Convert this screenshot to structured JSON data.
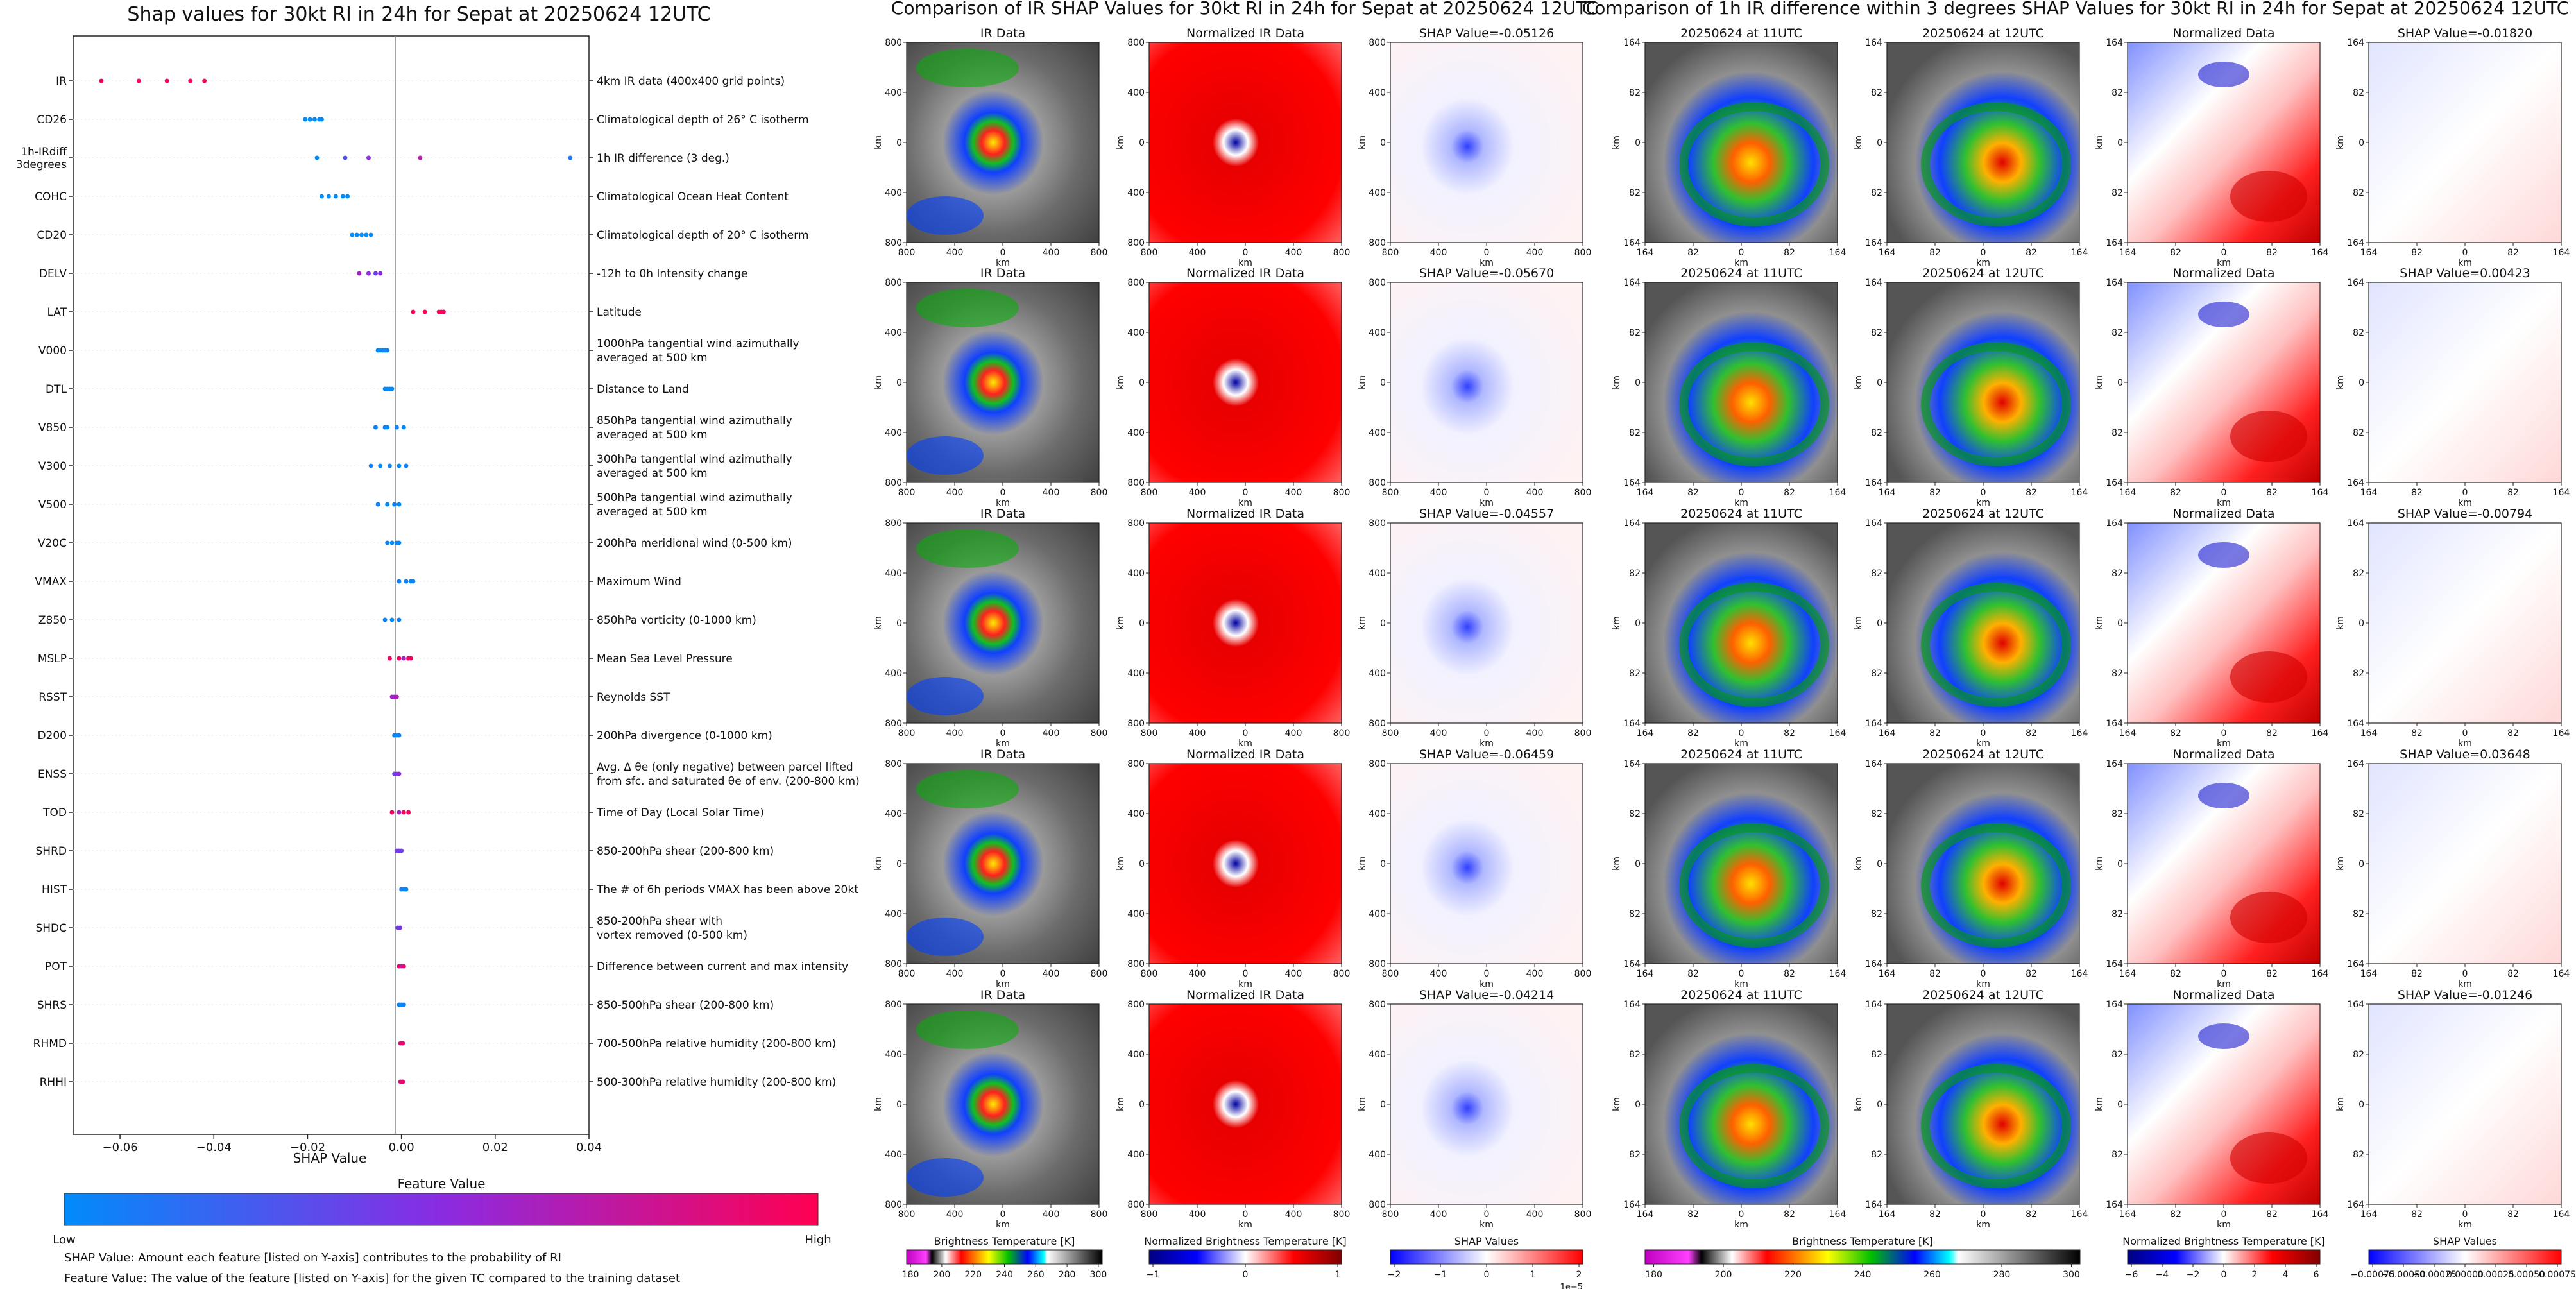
{
  "shap_chart": {
    "title": "Shap values for 30kt RI in 24h for Sepat at 20250624 12UTC",
    "xlabel": "SHAP Value",
    "xticks": [
      "−0.06",
      "−0.04",
      "−0.02",
      "0.00",
      "0.02",
      "0.04"
    ],
    "colorbar_title": "Feature Value",
    "colorbar_low": "Low",
    "colorbar_high": "High",
    "footnote_1": "SHAP Value: Amount each feature [listed on Y-axis] contributes to the probability of RI",
    "footnote_2": "Feature Value: The value of the feature [listed on Y-axis] for the given TC compared to the training dataset"
  },
  "panels_ir_title": "Comparison of IR SHAP Values for 30kt RI in 24h for Sepat at 20250624 12UTC",
  "panels_diff_title": "Comparison of 1h IR difference within 3 degrees SHAP Values for 30kt RI in 24h for Sepat at 20250624 12UTC",
  "panel_rows": [
    {
      "ir": "IR Data",
      "norm": "Normalized IR Data",
      "shap": "SHAP Value=-0.05126",
      "t11": "20250624 at 11UTC",
      "t12": "20250624 at 12UTC",
      "normd": "Normalized Data",
      "shapd": "SHAP Value=-0.01820"
    },
    {
      "ir": "IR Data",
      "norm": "Normalized IR Data",
      "shap": "SHAP Value=-0.05670",
      "t11": "20250624 at 11UTC",
      "t12": "20250624 at 12UTC",
      "normd": "Normalized Data",
      "shapd": "SHAP Value=0.00423"
    },
    {
      "ir": "IR Data",
      "norm": "Normalized IR Data",
      "shap": "SHAP Value=-0.04557",
      "t11": "20250624 at 11UTC",
      "t12": "20250624 at 12UTC",
      "normd": "Normalized Data",
      "shapd": "SHAP Value=-0.00794"
    },
    {
      "ir": "IR Data",
      "norm": "Normalized IR Data",
      "shap": "SHAP Value=-0.06459",
      "t11": "20250624 at 11UTC",
      "t12": "20250624 at 12UTC",
      "normd": "Normalized Data",
      "shapd": "SHAP Value=0.03648"
    },
    {
      "ir": "IR Data",
      "norm": "Normalized IR Data",
      "shap": "SHAP Value=-0.04214",
      "t11": "20250624 at 11UTC",
      "t12": "20250624 at 12UTC",
      "normd": "Normalized Data",
      "shapd": "SHAP Value=-0.01246"
    }
  ],
  "panel_axes": {
    "km_label": "km",
    "ir_xticks": [
      "800",
      "400",
      "0",
      "400",
      "800"
    ],
    "ir_yticks": [
      "800",
      "400",
      "0",
      "400",
      "800"
    ],
    "diff_xticks": [
      "164",
      "82",
      "0",
      "82",
      "164"
    ],
    "diff_yticks": [
      "164",
      "82",
      "0",
      "82",
      "164"
    ]
  },
  "colorbars": [
    {
      "label": "Brightness Temperature [K]",
      "ticks": [
        "180",
        "200",
        "220",
        "240",
        "260",
        "280",
        "300"
      ],
      "kind": "ir"
    },
    {
      "label": "Normalized Brightness Temperature [K]",
      "ticks": [
        "−1",
        "0",
        "1"
      ],
      "kind": "norm"
    },
    {
      "label": "SHAP Values",
      "ticks": [
        "−2",
        "−1",
        "0",
        "1",
        "2"
      ],
      "kind": "shap",
      "scale": "1e−5"
    },
    {
      "label": "Brightness Temperature [K]",
      "ticks": [
        "180",
        "200",
        "220",
        "240",
        "260",
        "280",
        "300"
      ],
      "kind": "ir"
    },
    {
      "label": "Normalized Brightness Temperature [K]",
      "ticks": [
        "−6",
        "−4",
        "−2",
        "0",
        "2",
        "4",
        "6"
      ],
      "kind": "norm"
    },
    {
      "label": "SHAP Values",
      "ticks": [
        "−0.00075",
        "−0.00050",
        "−0.00025",
        "0.00000",
        "0.00025",
        "0.00050",
        "0.00075"
      ],
      "kind": "shap"
    }
  ],
  "colors": {
    "low": "#008bfb",
    "high": "#ff0052",
    "mid": "#8a2be2",
    "shap_neg": "#0000ff",
    "shap_pos": "#ff0000"
  },
  "chart_data": {
    "type": "scatter",
    "subtype": "shap-beeswarm",
    "title": "Shap values for 30kt RI in 24h for Sepat at 20250624 12UTC",
    "xlabel": "SHAP Value",
    "xlim": [
      -0.07,
      0.04
    ],
    "features": [
      {
        "name": "IR",
        "desc": "4km IR data (400x400 grid points)",
        "points": [
          [
            -0.064,
            0.95
          ],
          [
            -0.056,
            0.95
          ],
          [
            -0.05,
            0.95
          ],
          [
            -0.045,
            0.95
          ],
          [
            -0.042,
            0.95
          ]
        ]
      },
      {
        "name": "CD26",
        "desc": "Climatological depth of 26° C isotherm",
        "points": [
          [
            -0.0205,
            0.0
          ],
          [
            -0.0195,
            0.0
          ],
          [
            -0.0185,
            0.0
          ],
          [
            -0.0175,
            0.0
          ],
          [
            -0.017,
            0.0
          ]
        ]
      },
      {
        "name": "1h-IRdiff\n3degrees",
        "desc": "1h IR difference (3 deg.)",
        "points": [
          [
            -0.018,
            0.0
          ],
          [
            -0.012,
            0.3
          ],
          [
            -0.007,
            0.5
          ],
          [
            0.004,
            0.7
          ],
          [
            0.036,
            0.1
          ]
        ]
      },
      {
        "name": "COHC",
        "desc": "Climatological Ocean Heat Content",
        "points": [
          [
            -0.017,
            0.0
          ],
          [
            -0.0155,
            0.0
          ],
          [
            -0.014,
            0.0
          ],
          [
            -0.0125,
            0.0
          ],
          [
            -0.0115,
            0.0
          ]
        ]
      },
      {
        "name": "CD20",
        "desc": "Climatological depth of 20° C isotherm",
        "points": [
          [
            -0.0105,
            0.0
          ],
          [
            -0.0095,
            0.0
          ],
          [
            -0.0085,
            0.0
          ],
          [
            -0.0075,
            0.0
          ],
          [
            -0.0065,
            0.0
          ]
        ]
      },
      {
        "name": "DELV",
        "desc": "-12h to 0h Intensity change",
        "points": [
          [
            -0.009,
            0.6
          ],
          [
            -0.007,
            0.5
          ],
          [
            -0.0055,
            0.4
          ],
          [
            -0.0045,
            0.5
          ]
        ]
      },
      {
        "name": "LAT",
        "desc": "Latitude",
        "points": [
          [
            0.0025,
            1.0
          ],
          [
            0.005,
            1.0
          ],
          [
            0.008,
            0.95
          ],
          [
            0.0085,
            1.0
          ],
          [
            0.009,
            0.95
          ]
        ]
      },
      {
        "name": "V000",
        "desc": "1000hPa tangential wind azimuthally\naveraged at 500 km",
        "points": [
          [
            -0.005,
            0.0
          ],
          [
            -0.0045,
            0.0
          ],
          [
            -0.004,
            0.05
          ],
          [
            -0.0035,
            0.0
          ],
          [
            -0.003,
            0.05
          ]
        ]
      },
      {
        "name": "DTL",
        "desc": "Distance to Land",
        "points": [
          [
            -0.0035,
            0.0
          ],
          [
            -0.003,
            0.0
          ],
          [
            -0.0025,
            0.0
          ],
          [
            -0.002,
            0.0
          ]
        ]
      },
      {
        "name": "V850",
        "desc": "850hPa tangential wind azimuthally\naveraged at 500 km",
        "points": [
          [
            -0.0055,
            0.05
          ],
          [
            -0.0035,
            0.05
          ],
          [
            -0.003,
            0.0
          ],
          [
            -0.001,
            0.05
          ],
          [
            0.0005,
            0.0
          ]
        ]
      },
      {
        "name": "V300",
        "desc": "300hPa tangential wind azimuthally\naveraged at 500 km",
        "points": [
          [
            -0.0065,
            0.05
          ],
          [
            -0.0045,
            0.0
          ],
          [
            -0.0025,
            0.05
          ],
          [
            -0.0005,
            0.0
          ],
          [
            0.001,
            0.05
          ]
        ]
      },
      {
        "name": "V500",
        "desc": "500hPa tangential wind azimuthally\naveraged at 500 km",
        "points": [
          [
            -0.005,
            0.05
          ],
          [
            -0.003,
            0.0
          ],
          [
            -0.0015,
            0.05
          ],
          [
            -0.0005,
            0.0
          ]
        ]
      },
      {
        "name": "V20C",
        "desc": "200hPa meridional wind (0-500 km)",
        "points": [
          [
            -0.003,
            0.05
          ],
          [
            -0.002,
            0.0
          ],
          [
            -0.001,
            0.05
          ],
          [
            -0.0005,
            0.0
          ]
        ]
      },
      {
        "name": "VMAX",
        "desc": "Maximum Wind",
        "points": [
          [
            -0.0005,
            0.05
          ],
          [
            0.001,
            0.05
          ],
          [
            0.002,
            0.0
          ],
          [
            0.0025,
            0.05
          ]
        ]
      },
      {
        "name": "Z850",
        "desc": "850hPa vorticity (0-1000 km)",
        "points": [
          [
            -0.0035,
            0.05
          ],
          [
            -0.002,
            0.0
          ],
          [
            -0.0005,
            0.05
          ]
        ]
      },
      {
        "name": "MSLP",
        "desc": "Mean Sea Level Pressure",
        "points": [
          [
            -0.0025,
            0.95
          ],
          [
            -0.0005,
            0.95
          ],
          [
            0.0005,
            0.6
          ],
          [
            0.0015,
            0.95
          ],
          [
            0.002,
            0.95
          ]
        ]
      },
      {
        "name": "RSST",
        "desc": "Reynolds SST",
        "points": [
          [
            -0.002,
            0.6
          ],
          [
            -0.0015,
            0.6
          ],
          [
            -0.001,
            0.65
          ]
        ]
      },
      {
        "name": "D200",
        "desc": "200hPa divergence (0-1000 km)",
        "points": [
          [
            -0.0015,
            0.05
          ],
          [
            -0.001,
            0.0
          ],
          [
            -0.0005,
            0.05
          ]
        ]
      },
      {
        "name": "ENSS",
        "desc": "Avg. Δ θe (only negative) between parcel lifted\nfrom sfc. and saturated θe of env. (200-800 km)",
        "points": [
          [
            -0.0015,
            0.4
          ],
          [
            -0.001,
            0.45
          ],
          [
            -0.0005,
            0.5
          ]
        ]
      },
      {
        "name": "TOD",
        "desc": "Time of Day (Local Solar Time)",
        "points": [
          [
            -0.002,
            0.95
          ],
          [
            -0.0005,
            0.6
          ],
          [
            0.0005,
            0.95
          ],
          [
            0.0015,
            0.95
          ]
        ]
      },
      {
        "name": "SHRD",
        "desc": "850-200hPa shear (200-800 km)",
        "points": [
          [
            -0.001,
            0.4
          ],
          [
            -0.0005,
            0.45
          ],
          [
            0.0,
            0.4
          ]
        ]
      },
      {
        "name": "HIST",
        "desc": "The # of 6h periods VMAX has been above 20kt",
        "points": [
          [
            0.0,
            0.05
          ],
          [
            0.0005,
            0.05
          ],
          [
            0.001,
            0.0
          ]
        ]
      },
      {
        "name": "SHDC",
        "desc": "850-200hPa shear with\nvortex removed (0-500 km)",
        "points": [
          [
            -0.0008,
            0.4
          ],
          [
            -0.0003,
            0.45
          ]
        ]
      },
      {
        "name": "POT",
        "desc": "Difference between current and max intensity",
        "points": [
          [
            -0.0005,
            0.95
          ],
          [
            0.0,
            0.7
          ],
          [
            0.0005,
            0.9
          ]
        ]
      },
      {
        "name": "SHRS",
        "desc": "850-500hPa shear (200-800 km)",
        "points": [
          [
            -0.0005,
            0.05
          ],
          [
            0.0,
            0.0
          ],
          [
            0.0005,
            0.05
          ]
        ]
      },
      {
        "name": "RHMD",
        "desc": "700-500hPa relative humidity (200-800 km)",
        "points": [
          [
            -0.0002,
            0.85
          ],
          [
            0.0003,
            0.9
          ]
        ]
      },
      {
        "name": "RHHI",
        "desc": "500-300hPa relative humidity (200-800 km)",
        "points": [
          [
            -0.0002,
            0.85
          ],
          [
            0.0003,
            0.9
          ]
        ]
      }
    ]
  }
}
